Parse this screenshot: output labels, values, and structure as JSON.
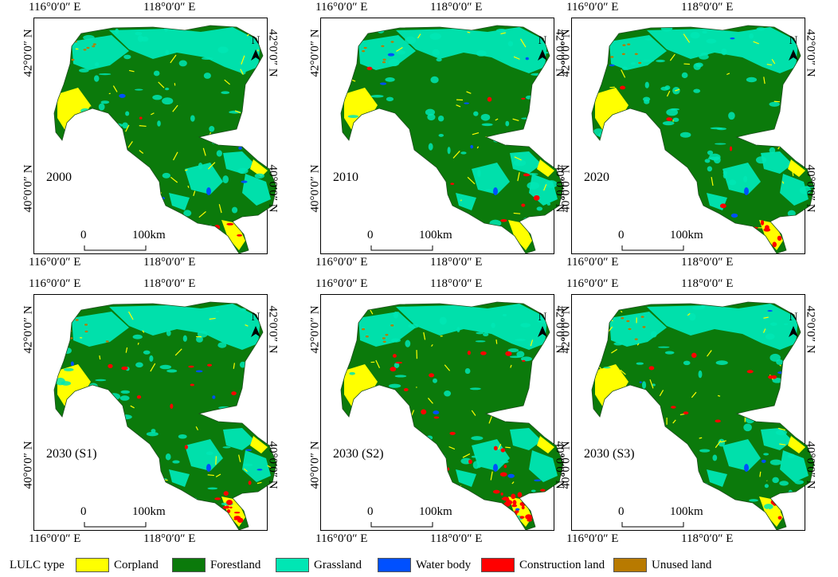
{
  "axis_labels": {
    "lon_left": "116°0′0″ E",
    "lon_right": "118°0′0″ E",
    "lat_top": "42°0′0″ N",
    "lat_bottom": "40°0′0″ N"
  },
  "north_label": "N",
  "scale": {
    "zero": "0",
    "distance": "100km"
  },
  "panels": [
    {
      "year": "2000"
    },
    {
      "year": "2010"
    },
    {
      "year": "2020"
    },
    {
      "year": "2030 (S1)"
    },
    {
      "year": "2030 (S2)"
    },
    {
      "year": "2030 (S3)"
    }
  ],
  "legend": {
    "title": "LULC type",
    "items": [
      {
        "label": "Corpland",
        "color": "#ffff00"
      },
      {
        "label": "Forestland",
        "color": "#0b7a0b"
      },
      {
        "label": "Grassland",
        "color": "#00e6b4"
      },
      {
        "label": "Water body",
        "color": "#0050ff"
      },
      {
        "label": "Construction land",
        "color": "#ff0000"
      },
      {
        "label": "Unused land",
        "color": "#b87a00"
      }
    ]
  }
}
